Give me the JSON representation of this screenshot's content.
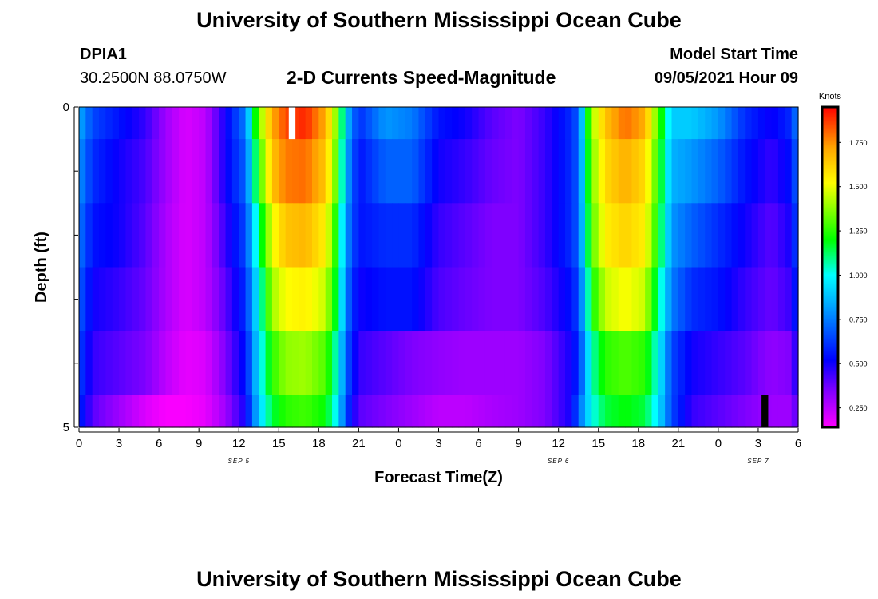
{
  "header": {
    "title": "University of Southern Mississippi Ocean Cube",
    "station_id": "DPIA1",
    "coords": "30.2500N  88.0750W",
    "chart_title": "2-D Currents Speed-Magnitude",
    "model_label": "Model Start Time",
    "model_time": "09/05/2021 Hour 09",
    "footer_title": "University of Southern Mississippi Ocean Cube"
  },
  "chart_data": {
    "type": "heatmap",
    "title": "2-D Currents Speed-Magnitude",
    "xlabel": "Forecast Time(Z)",
    "ylabel": "Depth (ft)",
    "xlim": [
      0,
      54
    ],
    "ylim": [
      0,
      5
    ],
    "x_ticks": [
      {
        "v": 0,
        "label": "0"
      },
      {
        "v": 3,
        "label": "3"
      },
      {
        "v": 6,
        "label": "6"
      },
      {
        "v": 9,
        "label": "9"
      },
      {
        "v": 12,
        "label": "12"
      },
      {
        "v": 15,
        "label": "15"
      },
      {
        "v": 18,
        "label": "18"
      },
      {
        "v": 21,
        "label": "21"
      },
      {
        "v": 24,
        "label": "0"
      },
      {
        "v": 27,
        "label": "3"
      },
      {
        "v": 30,
        "label": "6"
      },
      {
        "v": 33,
        "label": "9"
      },
      {
        "v": 36,
        "label": "12"
      },
      {
        "v": 39,
        "label": "15"
      },
      {
        "v": 42,
        "label": "18"
      },
      {
        "v": 45,
        "label": "21"
      },
      {
        "v": 48,
        "label": "0"
      },
      {
        "v": 51,
        "label": "3"
      },
      {
        "v": 54,
        "label": "6"
      }
    ],
    "date_labels": [
      {
        "v": 12,
        "label": "SEP 5"
      },
      {
        "v": 36,
        "label": "SEP 6"
      },
      {
        "v": 51,
        "label": "SEP 7"
      }
    ],
    "y_tick_labels": [
      {
        "v": 0,
        "label": "0"
      },
      {
        "v": 5,
        "label": "5"
      }
    ],
    "y_minor_ticks": [
      1,
      2,
      3,
      4
    ],
    "depth_bins": [
      0,
      0.5,
      1.5,
      2.5,
      3.5,
      4.5,
      5
    ],
    "x_step_hours": 0.5,
    "time_nodes_hours": [
      0,
      1,
      3,
      5,
      6.5,
      8,
      9.5,
      11,
      12.5,
      13.5,
      14.5,
      15.5,
      17,
      18.5,
      19.5,
      20,
      21,
      23,
      25,
      27,
      29,
      31,
      33,
      35,
      37,
      37.5,
      38.5,
      39.5,
      41,
      42.5,
      43.5,
      44.5,
      46,
      48,
      50,
      52,
      53.5,
      54
    ],
    "speed_knots_by_depth": [
      [
        0.85,
        0.65,
        0.55,
        0.45,
        0.3,
        0.2,
        0.25,
        0.5,
        0.75,
        1.35,
        1.7,
        1.85,
        1.9,
        1.7,
        1.3,
        0.9,
        0.6,
        0.8,
        0.75,
        0.55,
        0.5,
        0.4,
        0.35,
        0.45,
        0.6,
        0.7,
        1.4,
        1.65,
        1.8,
        1.7,
        1.3,
        0.9,
        0.9,
        0.8,
        0.6,
        0.5,
        0.6,
        0.8
      ],
      [
        0.8,
        0.6,
        0.5,
        0.42,
        0.3,
        0.2,
        0.25,
        0.5,
        0.7,
        1.25,
        1.65,
        1.78,
        1.8,
        1.65,
        1.25,
        0.85,
        0.55,
        0.7,
        0.7,
        0.5,
        0.45,
        0.38,
        0.35,
        0.45,
        0.6,
        0.7,
        1.35,
        1.6,
        1.7,
        1.6,
        1.25,
        0.85,
        0.8,
        0.7,
        0.55,
        0.45,
        0.55,
        0.75
      ],
      [
        0.75,
        0.55,
        0.5,
        0.4,
        0.28,
        0.2,
        0.25,
        0.45,
        0.65,
        1.1,
        1.5,
        1.65,
        1.68,
        1.55,
        1.15,
        0.8,
        0.55,
        0.6,
        0.6,
        0.45,
        0.4,
        0.35,
        0.35,
        0.45,
        0.6,
        0.7,
        1.3,
        1.55,
        1.62,
        1.55,
        1.2,
        0.8,
        0.7,
        0.6,
        0.5,
        0.4,
        0.5,
        0.7
      ],
      [
        0.7,
        0.5,
        0.45,
        0.38,
        0.28,
        0.2,
        0.25,
        0.4,
        0.6,
        1.0,
        1.4,
        1.52,
        1.55,
        1.45,
        1.1,
        0.75,
        0.5,
        0.55,
        0.55,
        0.42,
        0.38,
        0.35,
        0.35,
        0.42,
        0.55,
        0.65,
        1.2,
        1.45,
        1.52,
        1.45,
        1.1,
        0.75,
        0.6,
        0.55,
        0.45,
        0.38,
        0.45,
        0.65
      ],
      [
        0.65,
        0.45,
        0.4,
        0.35,
        0.25,
        0.18,
        0.2,
        0.35,
        0.55,
        0.95,
        1.25,
        1.38,
        1.4,
        1.3,
        1.0,
        0.7,
        0.45,
        0.4,
        0.35,
        0.32,
        0.3,
        0.3,
        0.3,
        0.35,
        0.5,
        0.6,
        1.05,
        1.25,
        1.3,
        1.25,
        1.0,
        0.65,
        0.5,
        0.45,
        0.4,
        0.32,
        0.35,
        0.55
      ],
      [
        0.6,
        0.4,
        0.3,
        0.2,
        0.15,
        0.15,
        0.18,
        0.3,
        0.5,
        0.9,
        1.15,
        1.25,
        1.28,
        1.2,
        0.95,
        0.65,
        0.4,
        0.35,
        0.3,
        0.25,
        0.25,
        0.28,
        0.3,
        0.35,
        0.5,
        0.7,
        1.0,
        1.15,
        1.2,
        1.15,
        0.95,
        0.65,
        0.45,
        0.4,
        0.35,
        0.3,
        0.3,
        0.45
      ]
    ],
    "gap_marks": [
      {
        "x_hours": 16,
        "depth_from": 0,
        "depth_to": 0.5,
        "color": "#ffffff"
      },
      {
        "x_hours": 51.5,
        "depth_from": 4.5,
        "depth_to": 5,
        "color": "#000000"
      }
    ],
    "colorbar": {
      "unit": "Knots",
      "min": 0.14,
      "max": 1.95,
      "tick_values": [
        0.25,
        0.5,
        0.75,
        1.0,
        1.25,
        1.5,
        1.75
      ],
      "tick_labels": [
        "0.250",
        "0.500",
        "0.750",
        "1.000",
        "1.250",
        "1.500",
        "1.750"
      ],
      "stops": [
        {
          "v": 0.14,
          "color": "#ff00ff"
        },
        {
          "v": 0.35,
          "color": "#7f00ff"
        },
        {
          "v": 0.52,
          "color": "#0000ff"
        },
        {
          "v": 0.85,
          "color": "#00b2ff"
        },
        {
          "v": 1.0,
          "color": "#00ffff"
        },
        {
          "v": 1.2,
          "color": "#00ff00"
        },
        {
          "v": 1.52,
          "color": "#ffff00"
        },
        {
          "v": 1.72,
          "color": "#ffa500"
        },
        {
          "v": 1.95,
          "color": "#ff0000"
        }
      ]
    }
  }
}
